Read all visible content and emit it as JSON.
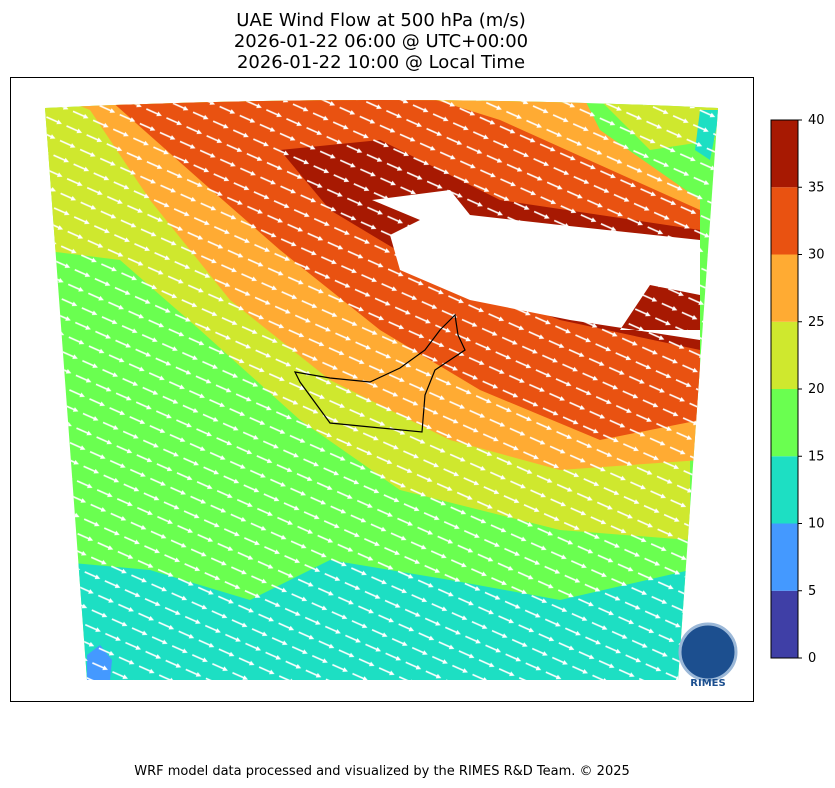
{
  "header": {
    "title_lines": [
      "UAE Wind Flow at 500 hPa (m/s)",
      "2026-01-22 06:00 @ UTC+00:00",
      "2026-01-22 10:00 @ Local Time"
    ]
  },
  "colorbar": {
    "ticks": [
      0,
      5,
      10,
      15,
      20,
      25,
      30,
      35,
      40
    ],
    "colors": [
      "#3f3fa6",
      "#4499ff",
      "#1ddfc3",
      "#6aff50",
      "#cfe82e",
      "#ffab33",
      "#e95211",
      "#a71902"
    ]
  },
  "logo": {
    "text": "RIMES"
  },
  "footer": {
    "text": "WRF model data processed and visualized by the RIMES R&D Team. © 2025"
  }
}
